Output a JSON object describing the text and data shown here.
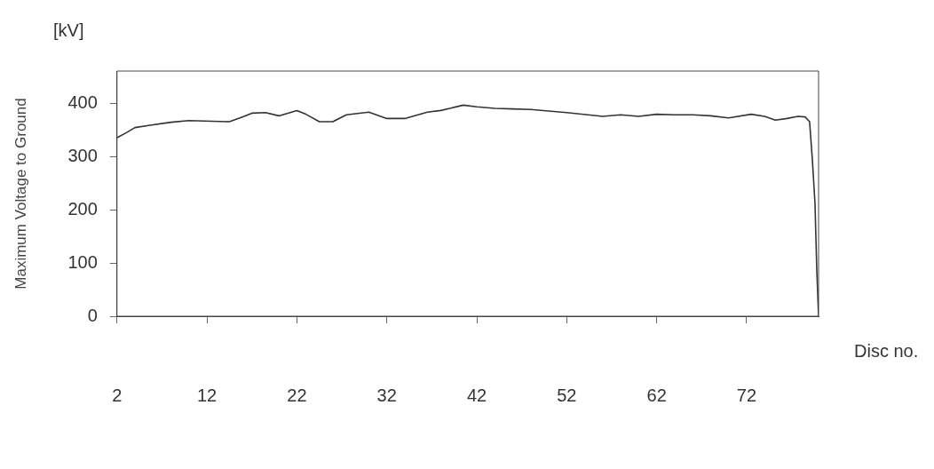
{
  "chart_data": {
    "type": "line",
    "xlabel": "Disc no.",
    "ylabel": "Maximum Voltage to Ground",
    "annotations": [
      "[kV]"
    ],
    "x": [
      2,
      3,
      4,
      5.5,
      8,
      10,
      14.5,
      16,
      17,
      18.5,
      20,
      22,
      23,
      24.5,
      26,
      27.5,
      30,
      32,
      34,
      36.5,
      38,
      40.5,
      42,
      44,
      46,
      48,
      52,
      56,
      58,
      60,
      62,
      64,
      66,
      68,
      70,
      72.5,
      74,
      75.2,
      76.5,
      77.7,
      78.5,
      79,
      79.3,
      79.6,
      79.8,
      80
    ],
    "series": [
      {
        "color": "#333333",
        "values": [
          335,
          344,
          354,
          358,
          364,
          367,
          365,
          374,
          381,
          382,
          376,
          386,
          379,
          365,
          365,
          378,
          383,
          371,
          371,
          383,
          386,
          396,
          393,
          390,
          389,
          388,
          382,
          375,
          378,
          375,
          379,
          378,
          378,
          376,
          372,
          379,
          375,
          368,
          371,
          375,
          374,
          365,
          296,
          212,
          87,
          0
        ]
      }
    ],
    "xlim": [
      2,
      80
    ],
    "xticks": [
      2,
      12,
      22,
      32,
      42,
      52,
      62,
      72
    ],
    "ylim": [
      0,
      460
    ],
    "yticks": [
      0,
      100,
      200,
      300,
      400
    ],
    "grid": false,
    "legend": false,
    "marker": "none",
    "line_style": "solid"
  }
}
